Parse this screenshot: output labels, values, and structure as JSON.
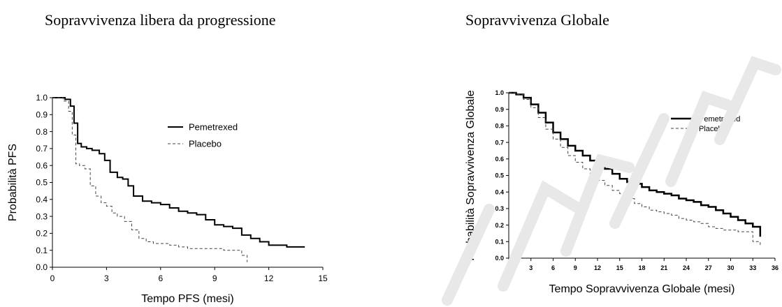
{
  "headings": {
    "left": "Sopravvivenza libera da progressione",
    "right": "Sopravvivenza Globale"
  },
  "chart_data": [
    {
      "type": "line",
      "xlabel": "Tempo PFS (mesi)",
      "ylabel": "Probabilità PFS",
      "xlim": [
        0,
        15
      ],
      "ylim": [
        0,
        1
      ],
      "xticks": [
        "0",
        "3",
        "6",
        "9",
        "12",
        "15"
      ],
      "yticks": [
        "0.0",
        "0.1",
        "0.2",
        "0.3",
        "0.4",
        "0.5",
        "0.6",
        "0.7",
        "0.8",
        "0.9",
        "1.0"
      ],
      "grid": false,
      "legend": "top-right",
      "series": [
        {
          "name": "Pemetrexed",
          "style": "solid",
          "color": "#000000",
          "x": [
            0,
            0.7,
            1.0,
            1.2,
            1.4,
            1.6,
            1.9,
            2.2,
            2.6,
            2.9,
            3.2,
            3.6,
            3.9,
            4.2,
            4.5,
            5.0,
            5.5,
            6.0,
            6.5,
            7.0,
            7.5,
            8.0,
            8.5,
            9.0,
            9.5,
            10.0,
            10.5,
            11.0,
            11.5,
            12.0,
            13.0,
            14.0
          ],
          "y": [
            1.0,
            0.99,
            0.95,
            0.85,
            0.73,
            0.71,
            0.7,
            0.69,
            0.67,
            0.63,
            0.56,
            0.53,
            0.52,
            0.48,
            0.42,
            0.39,
            0.38,
            0.37,
            0.35,
            0.33,
            0.32,
            0.31,
            0.28,
            0.25,
            0.24,
            0.23,
            0.19,
            0.17,
            0.15,
            0.13,
            0.12,
            0.12
          ]
        },
        {
          "name": "Placebo",
          "style": "dashed",
          "color": "#444444",
          "x": [
            0,
            0.6,
            0.9,
            1.1,
            1.3,
            1.5,
            1.8,
            2.1,
            2.4,
            2.7,
            3.0,
            3.3,
            3.6,
            4.0,
            4.4,
            4.8,
            5.2,
            5.6,
            6.0,
            6.5,
            7.0,
            7.5,
            8.0,
            8.5,
            9.0,
            9.5,
            10.0,
            10.5,
            10.8
          ],
          "y": [
            1.0,
            0.98,
            0.92,
            0.78,
            0.61,
            0.6,
            0.58,
            0.48,
            0.42,
            0.38,
            0.36,
            0.32,
            0.3,
            0.27,
            0.22,
            0.17,
            0.15,
            0.14,
            0.14,
            0.13,
            0.12,
            0.11,
            0.11,
            0.11,
            0.11,
            0.1,
            0.1,
            0.07,
            0.03
          ]
        }
      ]
    },
    {
      "type": "line",
      "xlabel": "Tempo Sopravvivenza Globale (mesi)",
      "ylabel": "Probabilità Sopravvivenza Globale",
      "xlim": [
        0,
        36
      ],
      "ylim": [
        0,
        1
      ],
      "xticks": [
        "0",
        "3",
        "6",
        "9",
        "12",
        "15",
        "18",
        "21",
        "24",
        "27",
        "30",
        "33",
        "36"
      ],
      "yticks": [
        "0.0",
        "0.1",
        "0.2",
        "0.3",
        "0.4",
        "0.5",
        "0.6",
        "0.7",
        "0.8",
        "0.9",
        "1.0"
      ],
      "grid": false,
      "legend": "top-right",
      "series": [
        {
          "name": "Pemetrexed",
          "style": "solid",
          "color": "#000000",
          "x": [
            0,
            1,
            2,
            3,
            4,
            5,
            6,
            7,
            8,
            9,
            10,
            11,
            12,
            13,
            14,
            15,
            16,
            17,
            18,
            19,
            20,
            21,
            22,
            23,
            24,
            25,
            26,
            27,
            28,
            29,
            30,
            31,
            32,
            33,
            34
          ],
          "y": [
            1.0,
            0.99,
            0.97,
            0.93,
            0.88,
            0.82,
            0.76,
            0.72,
            0.68,
            0.65,
            0.62,
            0.59,
            0.57,
            0.54,
            0.51,
            0.48,
            0.46,
            0.45,
            0.43,
            0.41,
            0.4,
            0.39,
            0.38,
            0.36,
            0.35,
            0.34,
            0.32,
            0.31,
            0.29,
            0.27,
            0.25,
            0.23,
            0.21,
            0.19,
            0.13
          ]
        },
        {
          "name": "Placebo",
          "style": "dashed",
          "color": "#444444",
          "x": [
            0,
            1,
            2,
            3,
            4,
            5,
            6,
            7,
            8,
            9,
            10,
            11,
            12,
            13,
            14,
            15,
            16,
            17,
            18,
            19,
            20,
            21,
            22,
            23,
            24,
            25,
            26,
            27,
            28,
            29,
            30,
            31,
            32,
            33,
            34
          ],
          "y": [
            1.0,
            0.99,
            0.96,
            0.91,
            0.85,
            0.78,
            0.72,
            0.67,
            0.62,
            0.58,
            0.54,
            0.5,
            0.47,
            0.44,
            0.41,
            0.39,
            0.36,
            0.33,
            0.31,
            0.29,
            0.28,
            0.27,
            0.26,
            0.24,
            0.23,
            0.22,
            0.21,
            0.19,
            0.18,
            0.17,
            0.17,
            0.16,
            0.16,
            0.1,
            0.07
          ]
        }
      ]
    }
  ]
}
